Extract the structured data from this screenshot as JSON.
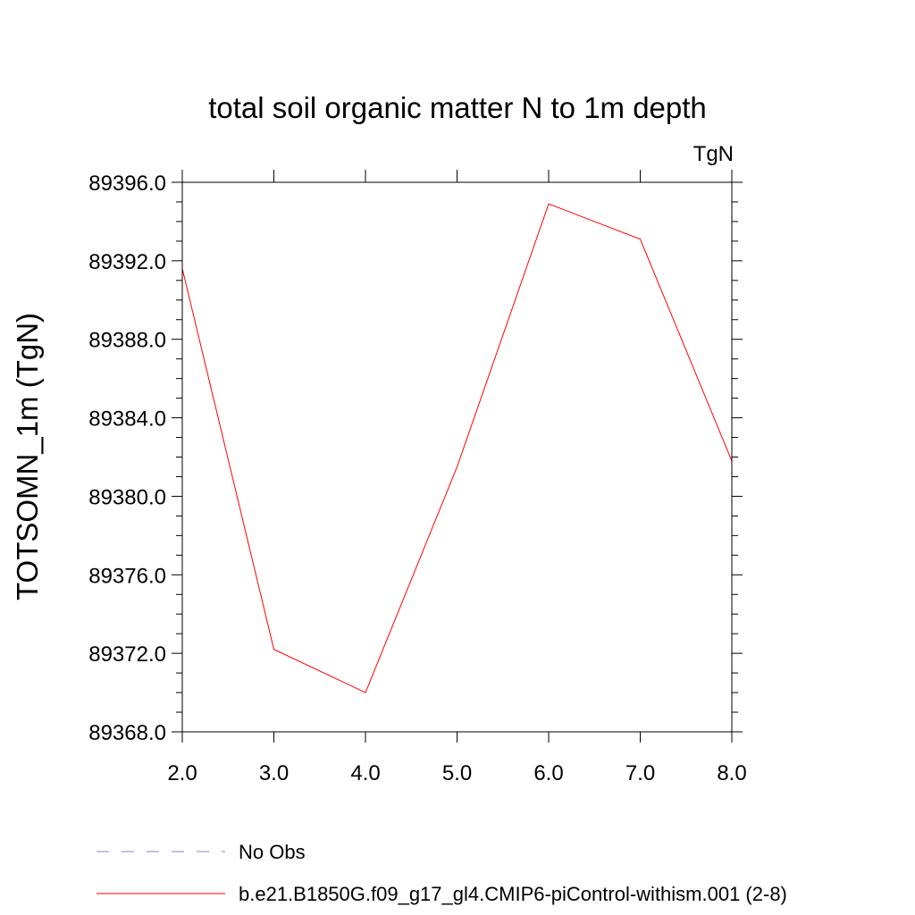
{
  "chart_data": {
    "type": "line",
    "title": "total soil organic matter N to 1m depth",
    "units_label": "TgN",
    "xlabel": "",
    "ylabel": "TOTSOMN_1m  (TgN)",
    "xlim": [
      2.0,
      8.0
    ],
    "ylim": [
      89368.0,
      89396.0
    ],
    "x_ticks": [
      "2.0",
      "3.0",
      "4.0",
      "5.0",
      "6.0",
      "7.0",
      "8.0"
    ],
    "y_ticks": [
      "89368.0",
      "89372.0",
      "89376.0",
      "89380.0",
      "89384.0",
      "89388.0",
      "89392.0",
      "89396.0"
    ],
    "grid": false,
    "legend_position": "bottom",
    "series": [
      {
        "name": "b.e21.B1850G.f09_g17_gl4.CMIP6-piControl-withism.001 (2-8)",
        "color": "#ff0000",
        "style": "solid",
        "x": [
          2.0,
          3.0,
          4.0,
          5.0,
          6.0,
          7.0,
          8.0
        ],
        "y": [
          89391.6,
          89372.2,
          89370.0,
          89381.5,
          89394.9,
          89393.1,
          89381.8
        ]
      },
      {
        "name": "No Obs",
        "color": "#8a7fd0",
        "style": "dashed",
        "x": [],
        "y": []
      }
    ]
  }
}
